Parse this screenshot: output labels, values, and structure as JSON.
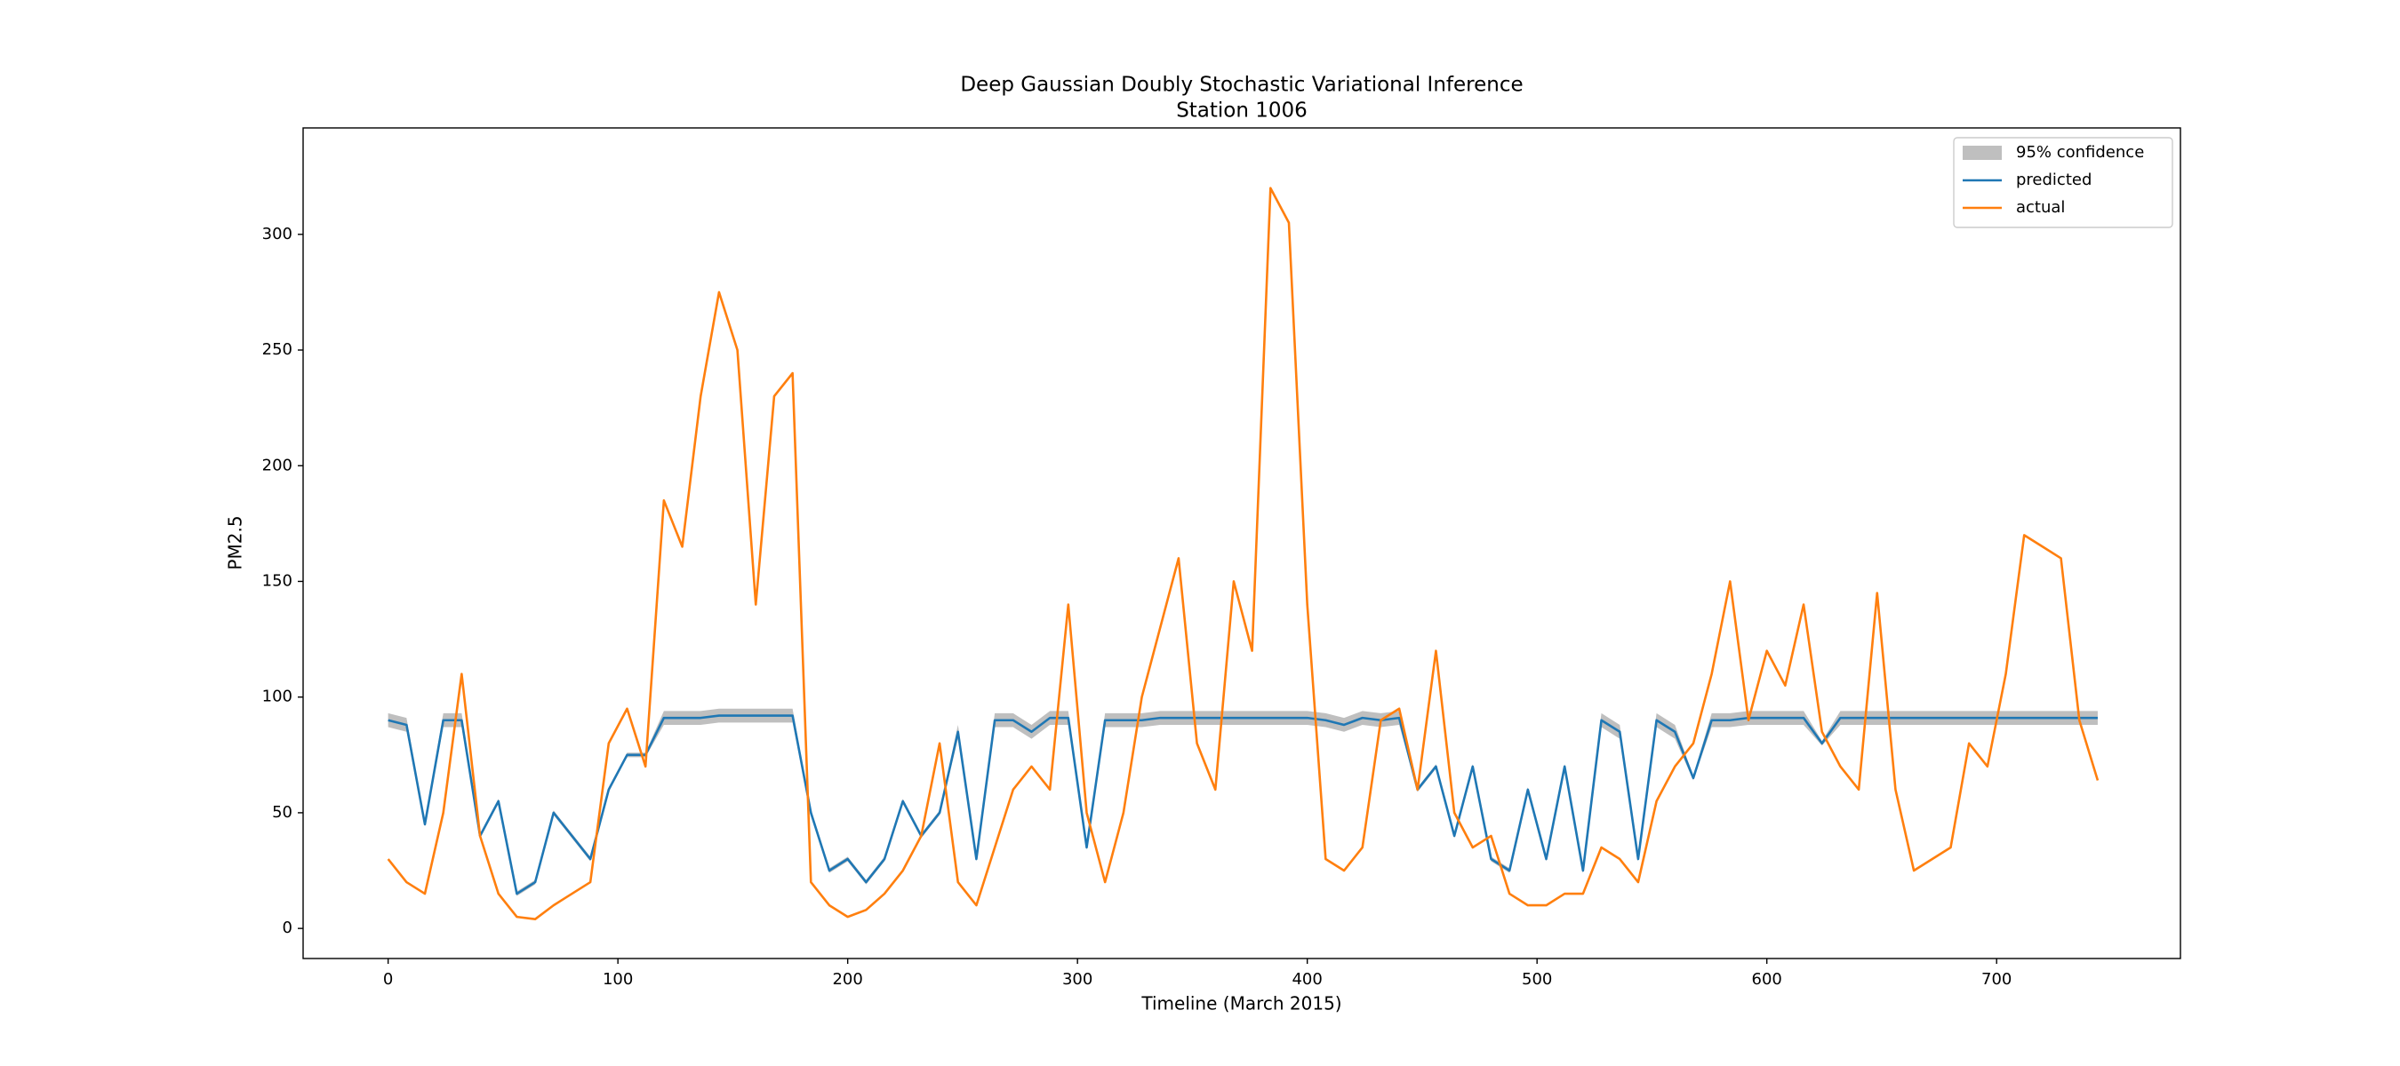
{
  "chart_data": {
    "type": "line",
    "title": "Deep Gaussian Doubly Stochastic Variational Inference",
    "subtitle": "Station 1006",
    "x_label": "Timeline (March 2015)",
    "y_label": "PM2.5",
    "x": [
      0,
      8,
      16,
      24,
      32,
      40,
      48,
      56,
      64,
      72,
      80,
      88,
      96,
      104,
      112,
      120,
      128,
      136,
      144,
      152,
      160,
      168,
      176,
      184,
      192,
      200,
      208,
      216,
      224,
      232,
      240,
      248,
      256,
      264,
      272,
      280,
      288,
      296,
      304,
      312,
      320,
      328,
      336,
      344,
      352,
      360,
      368,
      376,
      384,
      392,
      400,
      408,
      416,
      424,
      432,
      440,
      448,
      456,
      464,
      472,
      480,
      488,
      496,
      504,
      512,
      520,
      528,
      536,
      544,
      552,
      560,
      568,
      576,
      584,
      592,
      600,
      608,
      616,
      624,
      632,
      640,
      648,
      656,
      664,
      672,
      680,
      688,
      696,
      704,
      712,
      720,
      728,
      736,
      744
    ],
    "series": [
      {
        "name": "95% confidence",
        "color": "#bfbfbf",
        "lower": [
          87,
          85,
          44,
          87,
          87,
          39,
          54,
          14,
          19,
          49,
          39,
          29,
          59,
          74,
          74,
          88,
          88,
          88,
          89,
          89,
          89,
          89,
          89,
          49,
          24,
          29,
          19,
          29,
          54,
          39,
          49,
          82,
          29,
          87,
          87,
          82,
          88,
          88,
          34,
          87,
          87,
          87,
          88,
          88,
          88,
          88,
          88,
          88,
          88,
          88,
          88,
          87,
          85,
          88,
          87,
          88,
          59,
          69,
          39,
          69,
          29,
          24,
          59,
          29,
          69,
          24,
          87,
          82,
          29,
          87,
          82,
          64,
          87,
          87,
          88,
          88,
          88,
          88,
          79,
          88,
          88,
          88,
          88,
          88,
          88,
          88,
          88,
          88,
          88,
          88,
          88,
          88,
          88,
          88
        ],
        "upper": [
          93,
          91,
          46,
          93,
          93,
          41,
          56,
          16,
          21,
          51,
          41,
          31,
          61,
          76,
          76,
          94,
          94,
          94,
          95,
          95,
          95,
          95,
          95,
          51,
          26,
          31,
          21,
          31,
          56,
          41,
          51,
          88,
          31,
          93,
          93,
          88,
          94,
          94,
          36,
          93,
          93,
          93,
          94,
          94,
          94,
          94,
          94,
          94,
          94,
          94,
          94,
          93,
          91,
          94,
          93,
          94,
          61,
          71,
          41,
          71,
          31,
          26,
          61,
          31,
          71,
          26,
          93,
          88,
          31,
          93,
          88,
          66,
          93,
          93,
          94,
          94,
          94,
          94,
          81,
          94,
          94,
          94,
          94,
          94,
          94,
          94,
          94,
          94,
          94,
          94,
          94,
          94,
          94,
          94
        ]
      },
      {
        "name": "predicted",
        "color": "#1f77b4",
        "values": [
          90,
          88,
          45,
          90,
          90,
          40,
          55,
          15,
          20,
          50,
          40,
          30,
          60,
          75,
          75,
          91,
          91,
          91,
          92,
          92,
          92,
          92,
          92,
          50,
          25,
          30,
          20,
          30,
          55,
          40,
          50,
          85,
          30,
          90,
          90,
          85,
          91,
          91,
          35,
          90,
          90,
          90,
          91,
          91,
          91,
          91,
          91,
          91,
          91,
          91,
          91,
          90,
          88,
          91,
          90,
          91,
          60,
          70,
          40,
          70,
          30,
          25,
          60,
          30,
          70,
          25,
          90,
          85,
          30,
          90,
          85,
          65,
          90,
          90,
          91,
          91,
          91,
          91,
          80,
          91,
          91,
          91,
          91,
          91,
          91,
          91,
          91,
          91,
          91,
          91,
          91,
          91,
          91,
          91
        ]
      },
      {
        "name": "actual",
        "color": "#ff7f0e",
        "values": [
          30,
          20,
          15,
          50,
          110,
          40,
          15,
          5,
          4,
          10,
          15,
          20,
          80,
          95,
          70,
          185,
          165,
          230,
          275,
          250,
          140,
          230,
          240,
          20,
          10,
          5,
          8,
          15,
          25,
          40,
          80,
          20,
          10,
          35,
          60,
          70,
          60,
          140,
          50,
          20,
          50,
          100,
          130,
          160,
          80,
          60,
          150,
          120,
          320,
          305,
          140,
          30,
          25,
          35,
          90,
          95,
          60,
          120,
          50,
          35,
          40,
          15,
          10,
          10,
          15,
          15,
          35,
          30,
          20,
          55,
          70,
          80,
          110,
          150,
          90,
          120,
          105,
          140,
          85,
          70,
          60,
          145,
          60,
          25,
          30,
          35,
          80,
          70,
          110,
          170,
          165,
          160,
          90,
          64
        ]
      }
    ],
    "xlim": [
      -37,
      780
    ],
    "ylim": [
      -13,
      346
    ],
    "xticks": [
      0,
      100,
      200,
      300,
      400,
      500,
      600,
      700
    ],
    "yticks": [
      0,
      50,
      100,
      150,
      200,
      250,
      300
    ],
    "legend": "upper right"
  }
}
